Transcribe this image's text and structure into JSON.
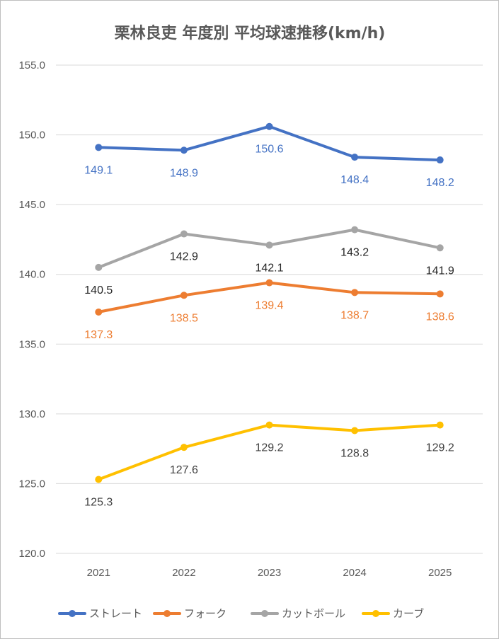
{
  "chart_data": {
    "type": "line",
    "title": "栗林良吏 年度別 平均球速推移(km/h)",
    "categories": [
      "2021",
      "2022",
      "2023",
      "2024",
      "2025"
    ],
    "ylim": [
      120.0,
      155.0
    ],
    "yticks": [
      "120.0",
      "125.0",
      "130.0",
      "135.0",
      "140.0",
      "145.0",
      "150.0",
      "155.0"
    ],
    "grid": true,
    "legend_position": "bottom",
    "series": [
      {
        "name": "ストレート",
        "color": "#4472c4",
        "label_color": "#4472c4",
        "label_side": "below",
        "values": [
          149.1,
          148.9,
          150.6,
          148.4,
          148.2
        ],
        "labels": [
          "149.1",
          "148.9",
          "150.6",
          "148.4",
          "148.2"
        ]
      },
      {
        "name": "フォーク",
        "color": "#ed7d31",
        "label_color": "#ed7d31",
        "label_side": "below",
        "values": [
          137.3,
          138.5,
          139.4,
          138.7,
          138.6
        ],
        "labels": [
          "137.3",
          "138.5",
          "139.4",
          "138.7",
          "138.6"
        ]
      },
      {
        "name": "カットボール",
        "color": "#a5a5a5",
        "label_color": "#262626",
        "label_side": "below",
        "values": [
          140.5,
          142.9,
          142.1,
          143.2,
          141.9
        ],
        "labels": [
          "140.5",
          "142.9",
          "142.1",
          "143.2",
          "141.9"
        ]
      },
      {
        "name": "カーブ",
        "color": "#ffc000",
        "label_color": "#404040",
        "label_side": "below",
        "values": [
          125.3,
          127.6,
          129.2,
          128.8,
          129.2
        ],
        "labels": [
          "125.3",
          "127.6",
          "129.2",
          "128.8",
          "129.2"
        ]
      }
    ]
  }
}
